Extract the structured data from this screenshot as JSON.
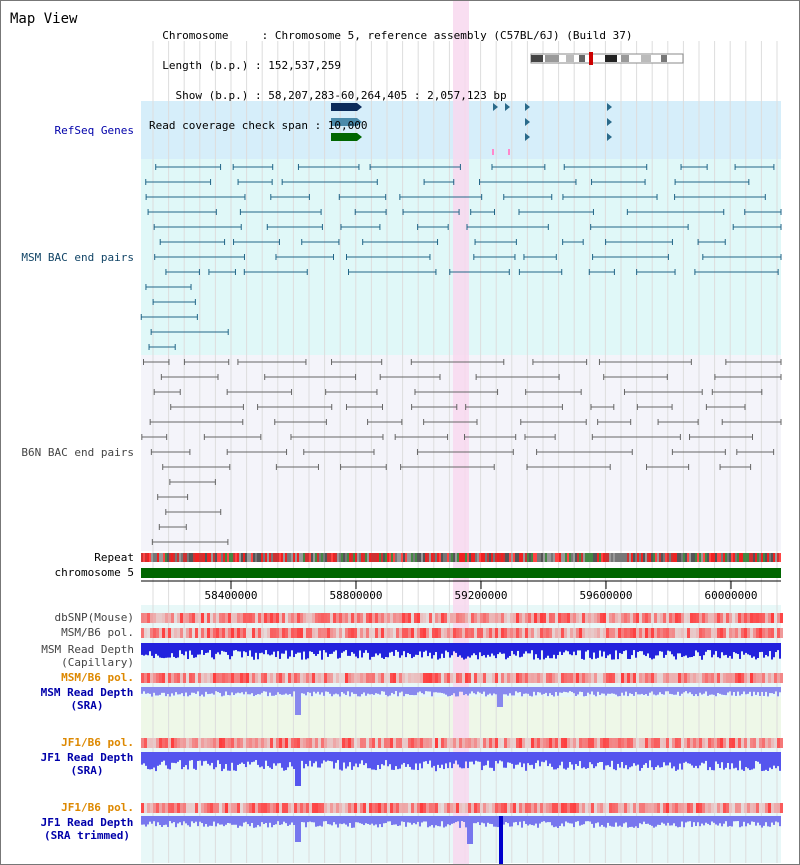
{
  "header": {
    "title": "Map View",
    "info_lines": [
      "  Chromosome     : Chromosome 5, reference assembly (C57BL/6J) (Build 37)",
      "  Length (b.p.) : 152,537,259",
      "    Show (b.p.) : 58,207,283-60,264,405 : 2,057,123 bp",
      "Read coverage check span : 10,000"
    ]
  },
  "tracks": {
    "refseq": "RefSeq Genes",
    "msm_bac": "MSM BAC end pairs",
    "b6n_bac": "B6N BAC end pairs",
    "repeat": "Repeat",
    "chromosome": "chromosome 5",
    "dbsnp": "dbSNP(Mouse)",
    "msm_b6_pol": "MSM/B6 pol.",
    "msm_depth_cap_1": "MSM Read Depth",
    "msm_depth_cap_2": "(Capillary)",
    "msm_b6_pol_2": "MSM/B6 pol.",
    "msm_depth_sra_1": "MSM Read Depth",
    "msm_depth_sra_2": "(SRA)",
    "jf1_b6_pol": "JF1/B6 pol.",
    "jf1_depth_sra_1": "JF1 Read Depth",
    "jf1_depth_sra_2": "(SRA)",
    "jf1_b6_pol_2": "JF1/B6 pol.",
    "jf1_depth_trim_1": "JF1 Read Depth",
    "jf1_depth_trim_2": "(SRA trimmed)"
  },
  "axis": {
    "ticks": [
      "58400000",
      "58800000",
      "59200000",
      "59600000",
      "60000000"
    ],
    "range": [
      58207283,
      60264405
    ]
  },
  "colors": {
    "refseq_bg": "#d6eefa",
    "msm_bg": "#e0f8f8",
    "b6n_bg": "#f4f4fa",
    "highlight": "#f8d8ee",
    "chromosome": "#006600",
    "msm_pair": "#226688",
    "b6n_pair": "#666666",
    "label_blue": "#0000aa",
    "label_teal": "#114466",
    "label_orange": "#dd8800",
    "depth": "#3333ee"
  }
}
